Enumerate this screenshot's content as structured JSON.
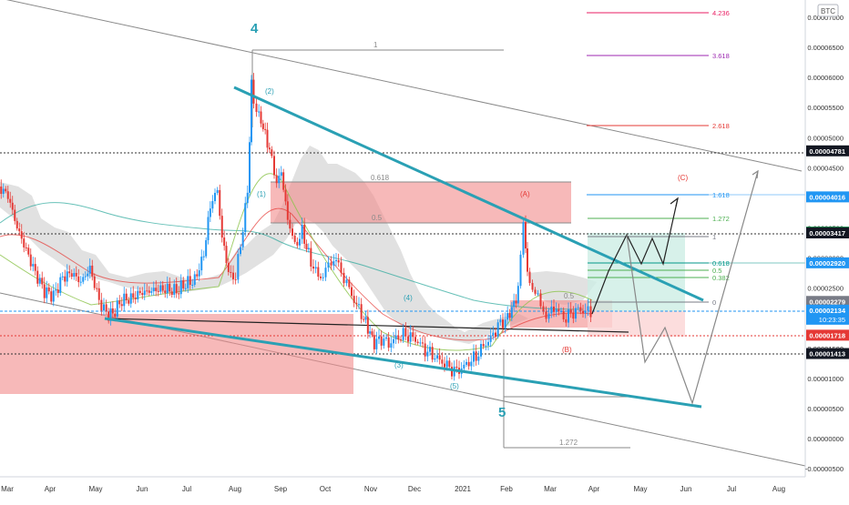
{
  "chart_data": {
    "type": "candlestick",
    "symbol": "BTC",
    "y_axis": {
      "scale": "linear",
      "ylim": [
        -5.5e-06,
        7.3e-06
      ],
      "ticks": [
        "0.00007000",
        "0.00006500",
        "0.00006000",
        "0.00005500",
        "0.00005000",
        "0.00004500",
        "0.00004000",
        "0.00003500",
        "0.00003000",
        "0.00002500",
        "0.00002000",
        "0.00001500",
        "0.00001000",
        "0.00000500",
        "0.00000000",
        "-0.00000500"
      ]
    },
    "x_axis": {
      "ticks": [
        "Mar",
        "Apr",
        "May",
        "Jun",
        "Jul",
        "Aug",
        "Sep",
        "Oct",
        "Nov",
        "Dec",
        "2021",
        "Feb",
        "Mar",
        "Apr",
        "May",
        "Jun",
        "Jul",
        "Aug"
      ]
    },
    "price_labels": [
      {
        "value": 4.781e-05,
        "text": "0.00004781",
        "color": "#000000",
        "style": "dark"
      },
      {
        "value": 4.016e-05,
        "text": "0.00004016",
        "color": "#2196f3",
        "style": "blue"
      },
      {
        "value": 3.43e-05,
        "text": "0.00003430",
        "color": "#087d3c",
        "style": "green"
      },
      {
        "value": 3.417e-05,
        "text": "0.00003417",
        "color": "#000000",
        "style": "dark"
      },
      {
        "value": 2.92e-05,
        "text": "0.00002920",
        "color": "#2196f3",
        "style": "blue"
      },
      {
        "value": 2.279e-05,
        "text": "0.00002279",
        "color": "#787b86",
        "style": "gray"
      },
      {
        "value": 2.134e-05,
        "text": "0.00002134",
        "color": "#2196f3",
        "style": "blue",
        "subtext": "10:23:35"
      },
      {
        "value": 1.718e-05,
        "text": "0.00001718",
        "color": "#e53935",
        "style": "red"
      },
      {
        "value": 1.413e-05,
        "text": "0.00001413",
        "color": "#000000",
        "style": "dark"
      }
    ],
    "fib_levels_upper": [
      {
        "level": "4.236",
        "color": "#e91e63"
      },
      {
        "level": "3.618",
        "color": "#9c27b0"
      },
      {
        "level": "2.618",
        "color": "#e53935"
      },
      {
        "level": "1.618",
        "color": "#2196f3"
      },
      {
        "level": "1.272",
        "color": "#4caf50"
      },
      {
        "level": "1",
        "color": "#787b86"
      },
      {
        "level": "0.618",
        "color": "#009688"
      },
      {
        "level": "0.5",
        "color": "#4caf50"
      },
      {
        "level": "0.382",
        "color": "#4caf50"
      },
      {
        "level": "0",
        "color": "#787b86"
      }
    ],
    "fib_levels_left": [
      "1",
      "0.618",
      "0.5"
    ],
    "fib_lower_labels": [
      "1.272"
    ],
    "wave_labels": [
      "4",
      "5",
      "(2)",
      "(1)",
      "(4)",
      "(3)",
      "(5)",
      "(A)",
      "(B)",
      "(C)",
      "0.5"
    ],
    "colors": {
      "trendline": "#2aa0b4",
      "bull": "#2196f3",
      "bear": "#e53935",
      "zone": "#f28b8b",
      "cloud": "#bdbdbd",
      "box_green": "#cdeee5"
    }
  }
}
